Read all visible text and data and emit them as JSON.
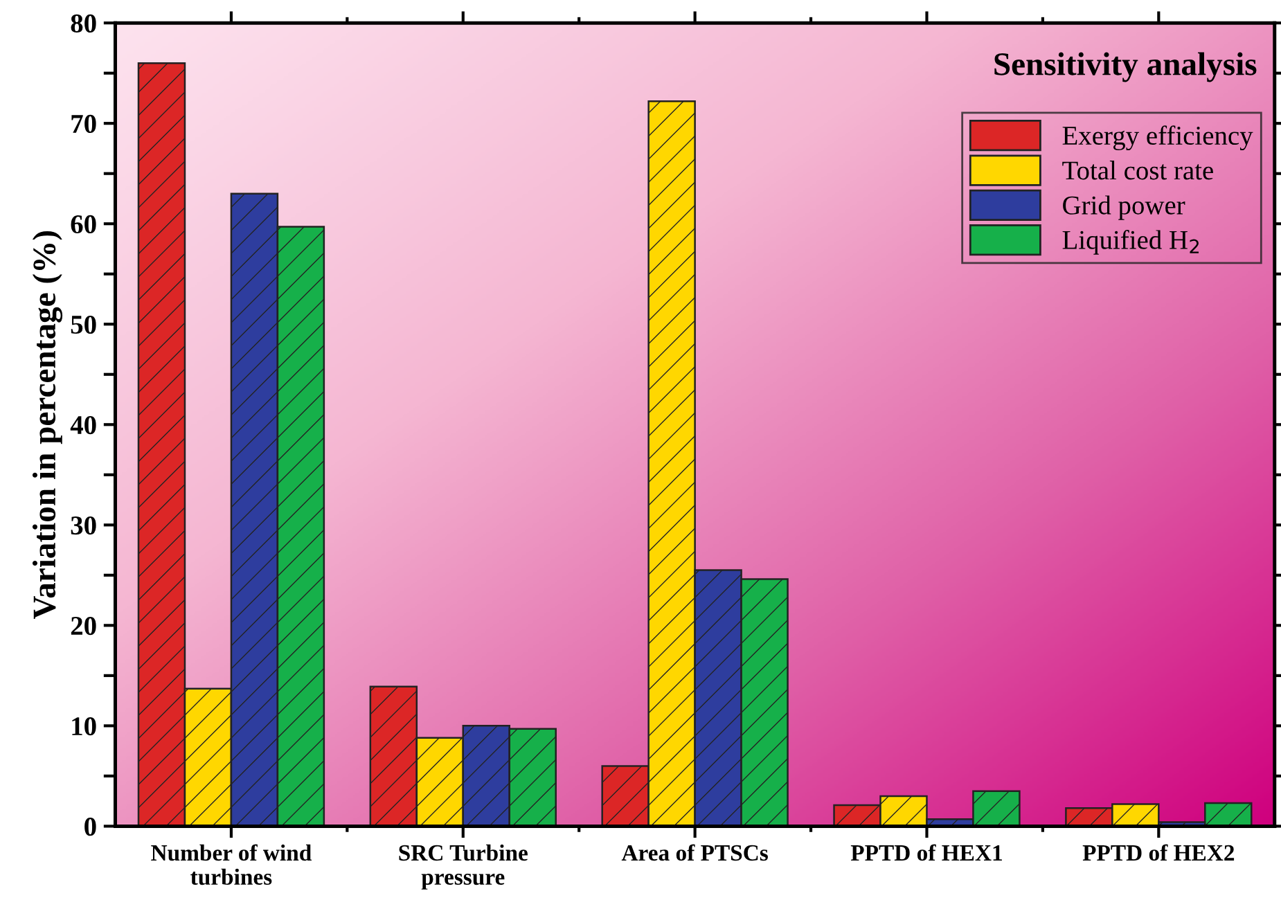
{
  "chart_data": {
    "type": "bar",
    "title": "Sensitivity analysis",
    "ylabel": "Variation in percentage (%)",
    "categories": [
      "Number of wind\nturbines",
      "SRC Turbine\npressure",
      "Area of PTSCs",
      "PPTD of HEX1",
      "PPTD of HEX2"
    ],
    "series": [
      {
        "name": "Exergy efficiency",
        "color": "#dc2626",
        "values": [
          76.0,
          13.9,
          6.0,
          2.1,
          1.8
        ]
      },
      {
        "name": "Total cost rate",
        "color": "#ffd700",
        "values": [
          13.7,
          8.8,
          72.2,
          3.0,
          2.2
        ]
      },
      {
        "name": "Grid power",
        "color": "#2e3d9e",
        "values": [
          63.0,
          10.0,
          25.5,
          0.7,
          0.4
        ]
      },
      {
        "name": "Liquified H$_{2}$",
        "color": "#16b04a",
        "values": [
          59.7,
          9.7,
          24.6,
          3.5,
          2.3
        ]
      }
    ],
    "ylim": [
      0,
      80
    ],
    "yticks": [
      0,
      {
        "value": 5,
        "label": null
      },
      10,
      {
        "value": 15,
        "label": null
      },
      20,
      {
        "value": 25,
        "label": null
      },
      30,
      {
        "value": 35,
        "label": null
      },
      40,
      {
        "value": 45,
        "label": null
      },
      50,
      {
        "value": 55,
        "label": null
      },
      60,
      {
        "value": 65,
        "label": null
      },
      70,
      {
        "value": 75,
        "label": null
      },
      80
    ],
    "grid": false,
    "legend": "top right"
  }
}
